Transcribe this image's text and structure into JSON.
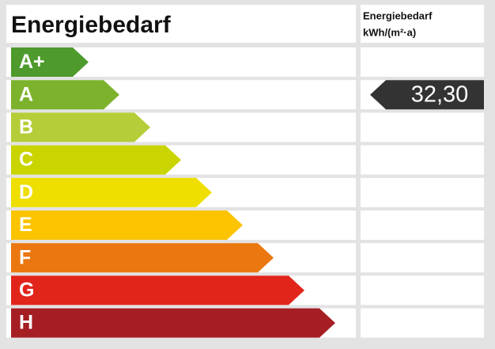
{
  "title": "Energiebedarf",
  "column_header": [
    "Energiebedarf",
    "kWh/(m²·a)"
  ],
  "classes": [
    {
      "label": "A+",
      "color": "#4e9a2d"
    },
    {
      "label": "A",
      "color": "#7db32c",
      "value": "32,30"
    },
    {
      "label": "B",
      "color": "#b5cd38"
    },
    {
      "label": "C",
      "color": "#c9d400"
    },
    {
      "label": "D",
      "color": "#eedf00"
    },
    {
      "label": "E",
      "color": "#fbc300"
    },
    {
      "label": "F",
      "color": "#ea770f"
    },
    {
      "label": "G",
      "color": "#e1251b"
    },
    {
      "label": "H",
      "color": "#a51e23"
    }
  ]
}
